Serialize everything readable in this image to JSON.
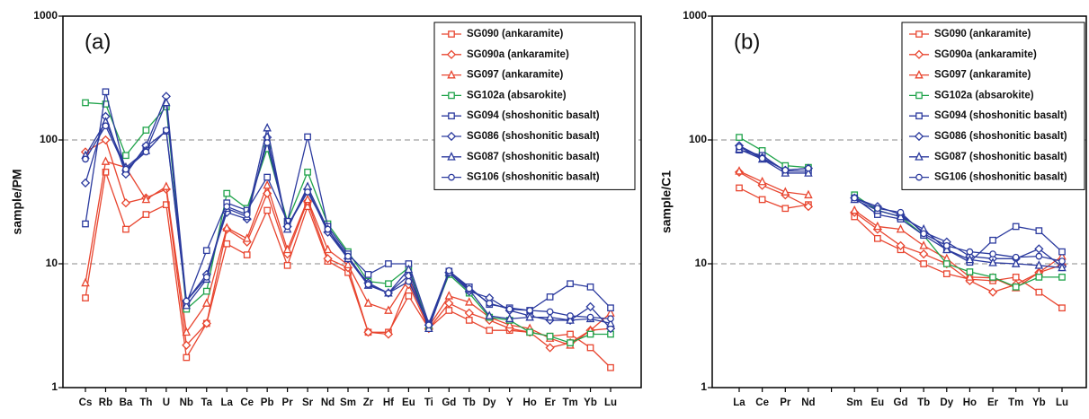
{
  "chart_data": [
    {
      "type": "line",
      "annotation": "(a)",
      "ylabel": "sample/PM",
      "log_scale": true,
      "grid": true,
      "legend": "upper right",
      "categories": [
        "Cs",
        "Rb",
        "Ba",
        "Th",
        "U",
        "Nb",
        "Ta",
        "La",
        "Ce",
        "Pb",
        "Pr",
        "Sr",
        "Nd",
        "Sm",
        "Zr",
        "Hf",
        "Eu",
        "Ti",
        "Gd",
        "Tb",
        "Dy",
        "Y",
        "Ho",
        "Er",
        "Tm",
        "Yb",
        "Lu"
      ],
      "ylim": [
        1,
        1000
      ],
      "yticks": [
        1,
        10,
        100,
        1000
      ],
      "series": [
        {
          "name": "SG090 (ankaramite)",
          "color": "#e8452f",
          "marker": "square",
          "values": [
            5.3,
            55,
            19,
            25,
            30,
            1.75,
            3.3,
            14.5,
            11.8,
            27,
            9.7,
            29,
            10.5,
            8.5,
            2.8,
            2.8,
            5.5,
            3.0,
            4.2,
            3.5,
            2.9,
            2.9,
            2.8,
            2.6,
            2.7,
            2.1,
            1.45
          ]
        },
        {
          "name": "SG090a (ankaramite)",
          "color": "#e8452f",
          "marker": "diamond",
          "values": [
            80,
            100,
            31,
            34,
            40,
            2.2,
            3.3,
            19,
            15,
            37,
            12,
            32,
            11,
            9.3,
            2.8,
            2.7,
            6.8,
            3.0,
            4.8,
            4.0,
            3.5,
            3.0,
            2.8,
            2.1,
            2.3,
            2.9,
            3.0
          ]
        },
        {
          "name": "SG097 (ankaramite)",
          "color": "#e8452f",
          "marker": "triangle",
          "values": [
            7,
            67,
            60,
            33,
            42,
            2.8,
            4.8,
            19.5,
            16,
            43,
            13,
            33,
            13,
            9.8,
            4.8,
            4.2,
            7.5,
            3.1,
            5.5,
            4.9,
            3.7,
            3.2,
            3.0,
            2.5,
            2.2,
            2.9,
            4.0
          ]
        },
        {
          "name": "SG102a (absarokite)",
          "color": "#1fa34a",
          "marker": "square",
          "values": [
            200,
            195,
            75,
            120,
            185,
            4.3,
            6,
            37,
            28,
            85,
            22,
            55,
            21,
            12.5,
            7.2,
            6.9,
            9.3,
            3.1,
            8.2,
            5.8,
            3.7,
            3.5,
            2.8,
            2.6,
            2.3,
            2.7,
            2.7
          ]
        },
        {
          "name": "SG094 (shoshonitic basalt)",
          "color": "#2b3a9e",
          "marker": "square",
          "values": [
            21,
            245,
            55,
            88,
            118,
            4.8,
            12.8,
            31,
            27,
            50,
            22,
            106,
            20,
            12,
            8.2,
            10,
            10,
            3.3,
            8.7,
            6.5,
            4.7,
            4.4,
            4.2,
            5.4,
            6.9,
            6.5,
            4.4
          ]
        },
        {
          "name": "SG086 (shoshonitic basalt)",
          "color": "#2b3a9e",
          "marker": "diamond",
          "values": [
            45,
            155,
            53,
            90,
            225,
            5.0,
            8.2,
            26,
            23,
            105,
            20,
            40,
            18,
            11,
            7,
            5.8,
            8,
            3.2,
            8.5,
            6.0,
            5.3,
            4.2,
            3.8,
            3.5,
            3.5,
            4.5,
            3.0
          ]
        },
        {
          "name": "SG087 (shoshonitic basalt)",
          "color": "#2b3a9e",
          "marker": "triangle",
          "values": [
            75,
            140,
            60,
            82,
            200,
            4.6,
            7.5,
            28,
            24,
            125,
            19,
            42,
            19,
            11,
            6.7,
            5.8,
            9,
            3.0,
            8.5,
            6.2,
            3.8,
            3.6,
            3.7,
            3.7,
            3.5,
            3.6,
            3.3
          ]
        },
        {
          "name": "SG106 (shoshonitic basalt)",
          "color": "#2b3a9e",
          "marker": "circle",
          "values": [
            70,
            130,
            58,
            80,
            120,
            5.0,
            7.8,
            29,
            25,
            95,
            20,
            38,
            19,
            11.5,
            6.8,
            5.8,
            7.2,
            3.2,
            8.8,
            6.3,
            4.8,
            4.3,
            4.2,
            4.1,
            3.8,
            3.7,
            3.6
          ]
        }
      ]
    },
    {
      "type": "line",
      "annotation": "(b)",
      "ylabel": "sample/C1",
      "log_scale": true,
      "grid": true,
      "legend": "upper right",
      "categories": [
        "La",
        "Ce",
        "Pr",
        "Nd",
        null,
        "Sm",
        "Eu",
        "Gd",
        "Tb",
        "Dy",
        "Ho",
        "Er",
        "Tm",
        "Yb",
        "Lu"
      ],
      "ylim": [
        1,
        1000
      ],
      "yticks": [
        1,
        10,
        100,
        1000
      ],
      "series": [
        {
          "name": "SG090 (ankaramite)",
          "color": "#e8452f",
          "marker": "square",
          "values": [
            41,
            33,
            28,
            30,
            null,
            24,
            16,
            13,
            10,
            8.3,
            7.5,
            7.3,
            7.8,
            5.9,
            4.4
          ]
        },
        {
          "name": "SG090a (ankaramite)",
          "color": "#e8452f",
          "marker": "diamond",
          "values": [
            55,
            43,
            36,
            29,
            null,
            26,
            19,
            14,
            12,
            10,
            7.3,
            5.9,
            6.8,
            8.5,
            9.8
          ]
        },
        {
          "name": "SG097 (ankaramite)",
          "color": "#e8452f",
          "marker": "triangle",
          "values": [
            56,
            46,
            38,
            36,
            null,
            27,
            20,
            19,
            14,
            11,
            7.8,
            7.7,
            6.4,
            8.5,
            11.5
          ]
        },
        {
          "name": "SG102a (absarokite)",
          "color": "#1fa34a",
          "marker": "square",
          "values": [
            105,
            82,
            62,
            60,
            null,
            36,
            27,
            24,
            17,
            10,
            8.6,
            7.8,
            6.5,
            7.8,
            7.8
          ]
        },
        {
          "name": "SG094 (shoshonitic basalt)",
          "color": "#2b3a9e",
          "marker": "square",
          "values": [
            83,
            75,
            56,
            56,
            null,
            34,
            25,
            23,
            17,
            13,
            10.3,
            15.5,
            20,
            18.5,
            12.5
          ]
        },
        {
          "name": "SG086 (shoshonitic basalt)",
          "color": "#2b3a9e",
          "marker": "diamond",
          "values": [
            90,
            72,
            57,
            59,
            null,
            34,
            29,
            25,
            18,
            15,
            11.5,
            11,
            11,
            13.2,
            9.5
          ]
        },
        {
          "name": "SG087 (shoshonitic basalt)",
          "color": "#2b3a9e",
          "marker": "triangle",
          "values": [
            84,
            70,
            54,
            54,
            null,
            33,
            27,
            24,
            19,
            13,
            10.8,
            10.2,
            10,
            9.7,
            9.3
          ]
        },
        {
          "name": "SG106 (shoshonitic basalt)",
          "color": "#2b3a9e",
          "marker": "circle",
          "values": [
            88,
            71,
            57,
            59,
            null,
            34,
            28,
            26,
            17.5,
            14,
            12.5,
            12,
            11.3,
            11.5,
            10.5
          ]
        }
      ]
    }
  ]
}
